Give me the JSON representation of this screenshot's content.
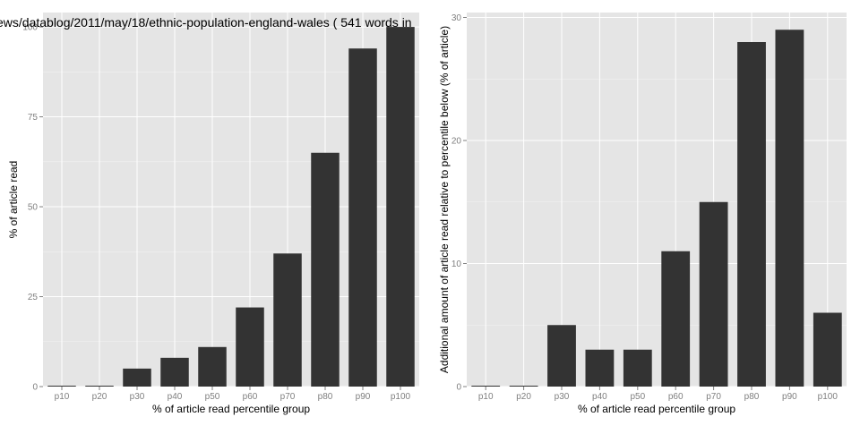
{
  "chart_data": [
    {
      "type": "bar",
      "title": "ews/datablog/2011/may/18/ethnic-population-england-wales ( 541 words in",
      "xlabel": "% of article read percentile group",
      "ylabel": "% of article read",
      "categories": [
        "p10",
        "p20",
        "p30",
        "p40",
        "p50",
        "p60",
        "p70",
        "p80",
        "p90",
        "p100"
      ],
      "values": [
        0,
        0,
        5,
        8,
        11,
        22,
        37,
        65,
        94,
        100
      ],
      "ylim": [
        0,
        104
      ],
      "yticks": [
        "0",
        "25",
        "50",
        "75",
        "100"
      ],
      "ytick_values": [
        0,
        25,
        50,
        75,
        100
      ],
      "grid": true,
      "colors": {
        "bar": "#333333",
        "panel": "#e5e5e5",
        "grid": "#ffffff"
      }
    },
    {
      "type": "bar",
      "title": "",
      "xlabel": "% of article read percentile group",
      "ylabel": "Additional amount of article read relative to percentile below (% of article)",
      "categories": [
        "p10",
        "p20",
        "p30",
        "p40",
        "p50",
        "p60",
        "p70",
        "p80",
        "p90",
        "p100"
      ],
      "values": [
        0,
        0,
        5,
        3,
        3,
        11,
        15,
        28,
        29,
        6
      ],
      "ylim": [
        0,
        30.4
      ],
      "yticks": [
        "0",
        "10",
        "20",
        "30"
      ],
      "ytick_values": [
        0,
        10,
        20,
        30
      ],
      "grid": true,
      "colors": {
        "bar": "#333333",
        "panel": "#e5e5e5",
        "grid": "#ffffff"
      }
    }
  ]
}
